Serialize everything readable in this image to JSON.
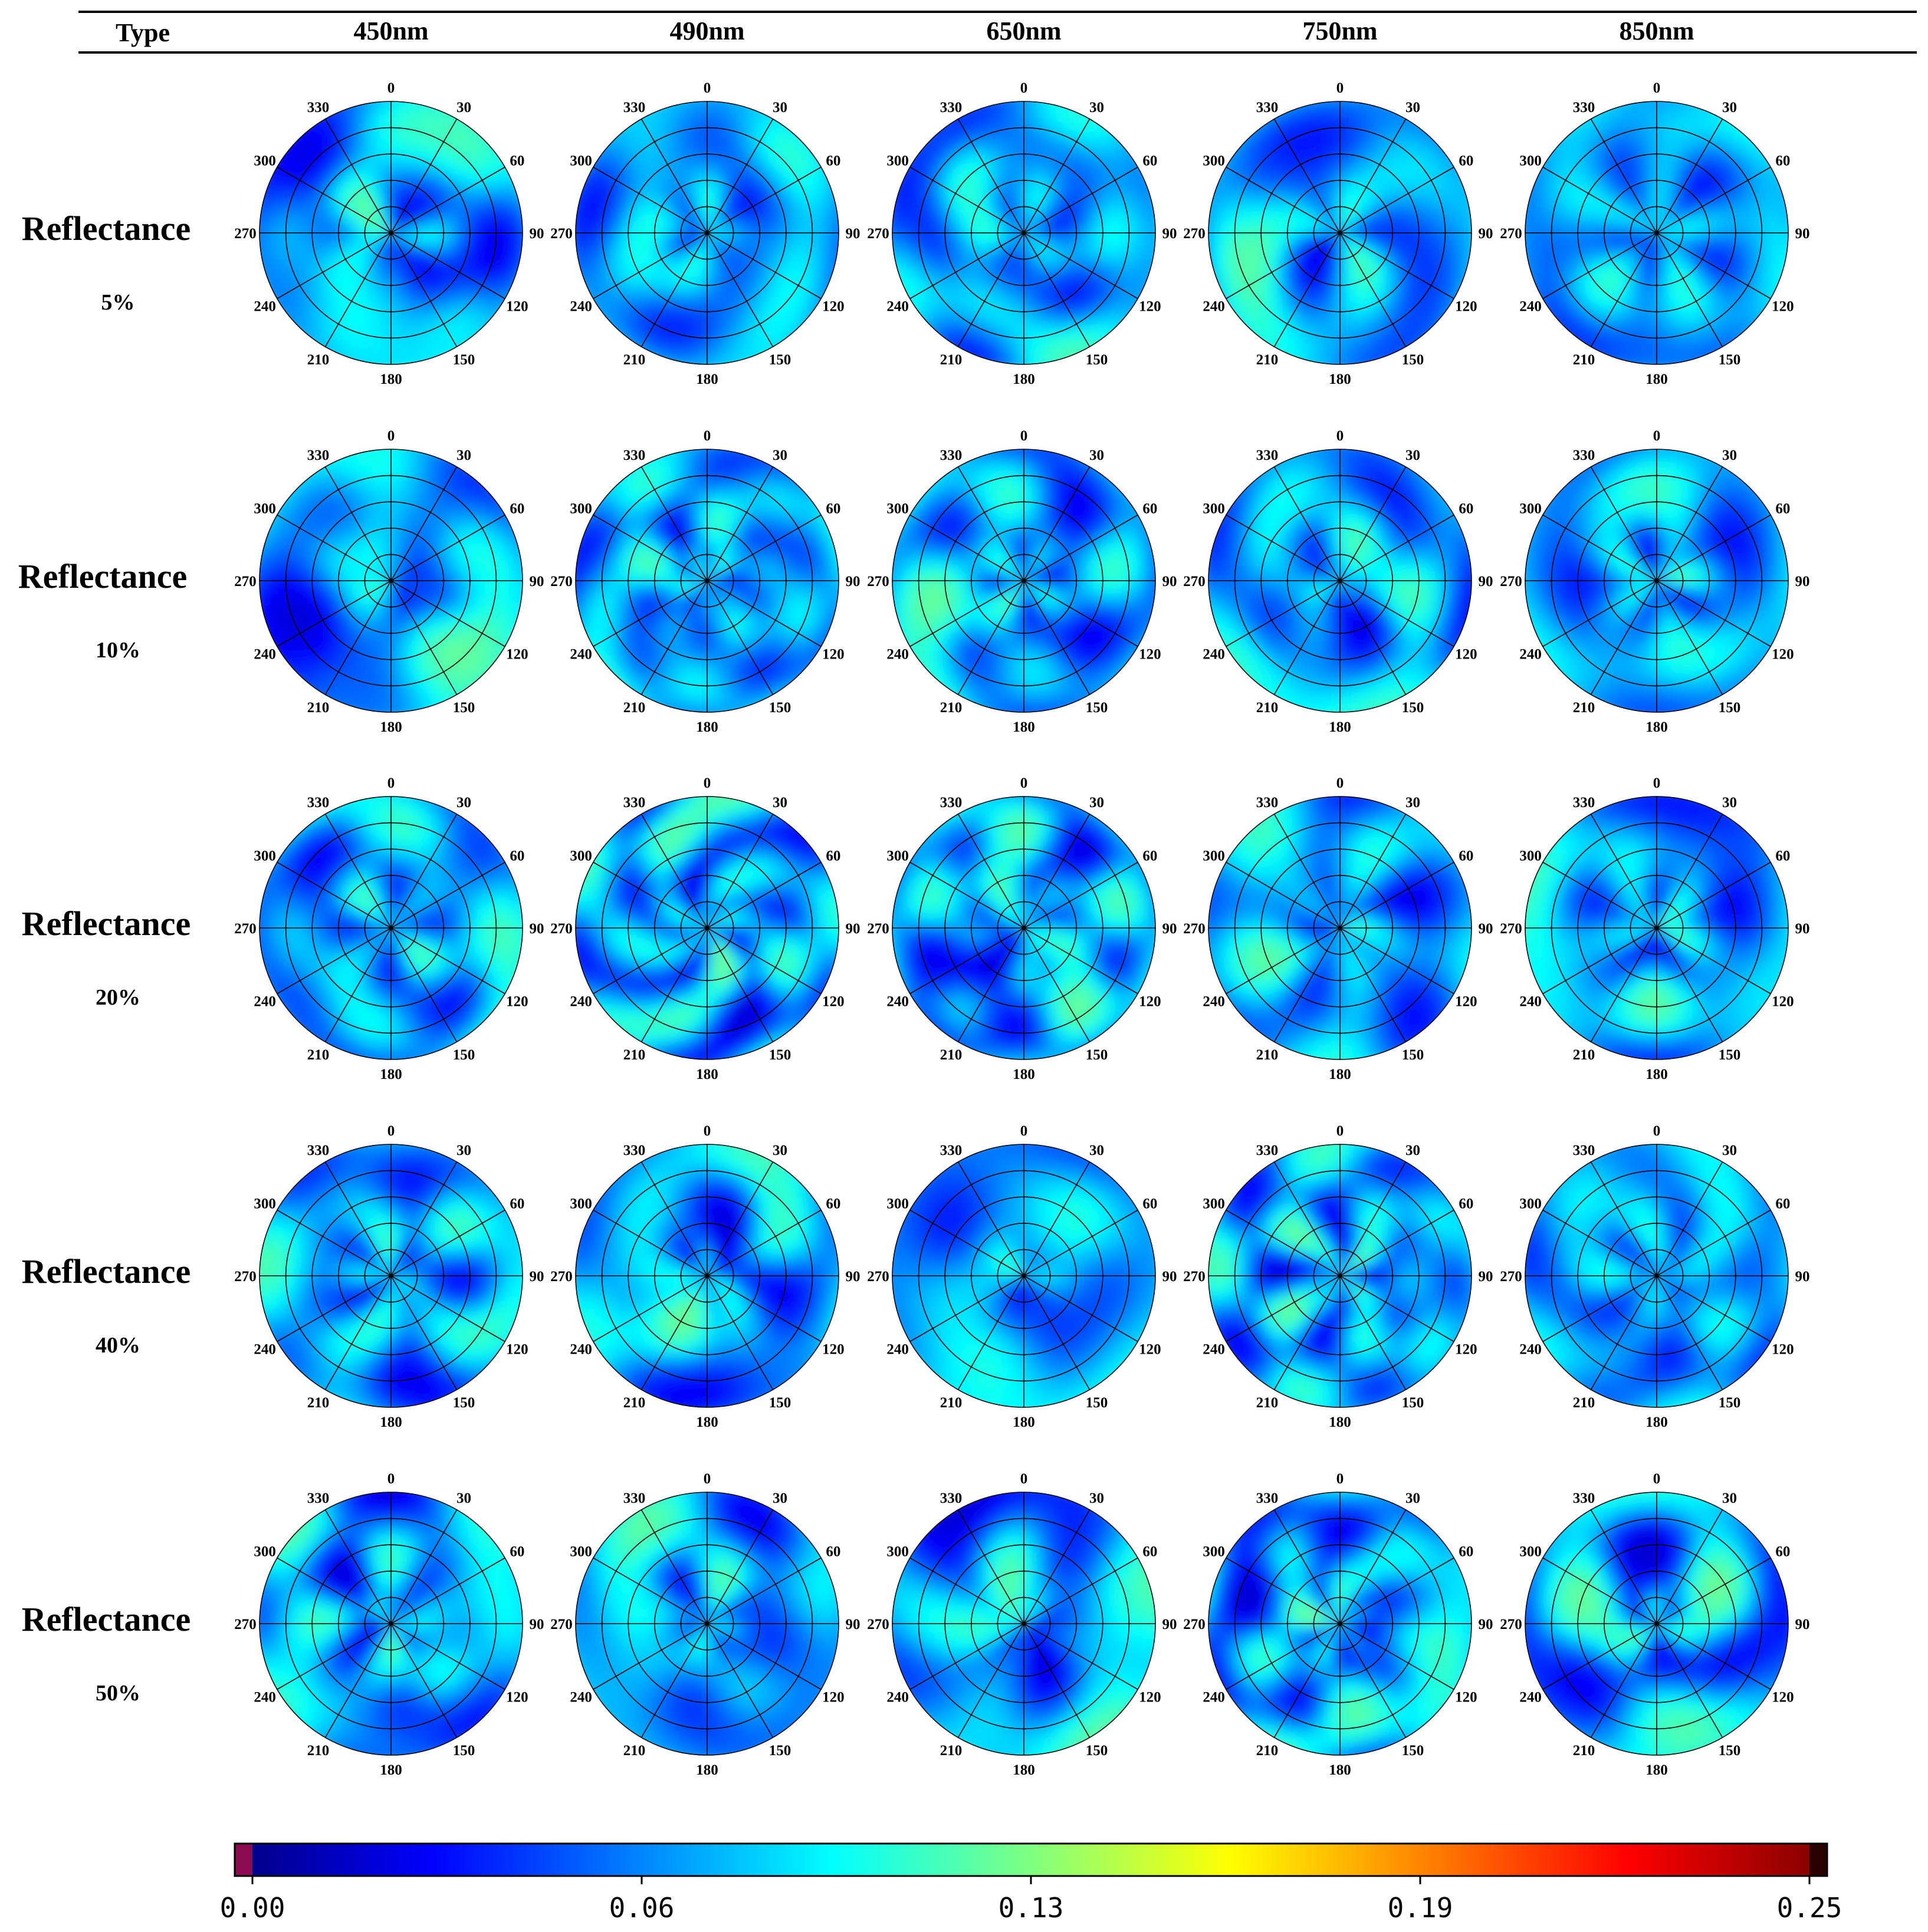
{
  "chart_data": {
    "type": "polar-heatmap-grid",
    "header": {
      "type_label": "Type",
      "columns": [
        "450nm",
        "490nm",
        "650nm",
        "750nm",
        "850nm"
      ]
    },
    "rows": [
      {
        "label": "Reflectance",
        "value": "5%"
      },
      {
        "label": "Reflectance",
        "value": "10%"
      },
      {
        "label": "Reflectance",
        "value": "20%"
      },
      {
        "label": "Reflectance",
        "value": "40%"
      },
      {
        "label": "Reflectance",
        "value": "50%"
      }
    ],
    "angle_labels": [
      "0",
      "30",
      "60",
      "90",
      "120",
      "150",
      "180",
      "210",
      "240",
      "270",
      "300",
      "330"
    ],
    "radial_rings": 5,
    "colorbar": {
      "colormap": "jet",
      "min": 0.0,
      "max": 0.25,
      "ticks": [
        "0.00",
        "0.06",
        "0.13",
        "0.19",
        "0.25"
      ]
    },
    "value_range_in_plots": [
      0.0,
      0.13
    ]
  }
}
